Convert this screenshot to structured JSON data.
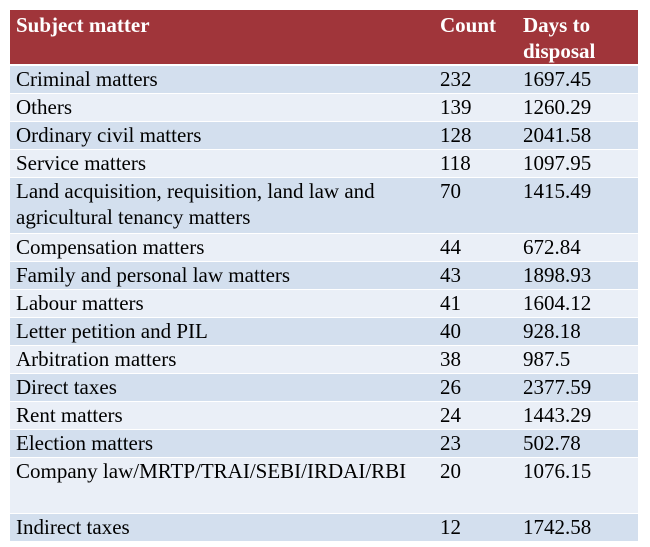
{
  "table": {
    "headers": {
      "subject": "Subject matter",
      "count": "Count",
      "days": "Days to disposal"
    },
    "rows": [
      {
        "subject": "Criminal matters",
        "count": "232",
        "days": "1697.45"
      },
      {
        "subject": "Others",
        "count": "139",
        "days": "1260.29"
      },
      {
        "subject": "Ordinary civil matters",
        "count": "128",
        "days": "2041.58"
      },
      {
        "subject": "Service matters",
        "count": "118",
        "days": "1097.95"
      },
      {
        "subject": "Land acquisition, requisition, land law and agricultural tenancy matters",
        "count": "70",
        "days": "1415.49"
      },
      {
        "subject": "Compensation matters",
        "count": "44",
        "days": "672.84"
      },
      {
        "subject": "Family and personal law matters",
        "count": "43",
        "days": "1898.93"
      },
      {
        "subject": "Labour matters",
        "count": "41",
        "days": "1604.12"
      },
      {
        "subject": "Letter petition and PIL",
        "count": "40",
        "days": "928.18"
      },
      {
        "subject": "Arbitration matters",
        "count": "38",
        "days": "987.5"
      },
      {
        "subject": "Direct taxes",
        "count": "26",
        "days": "2377.59"
      },
      {
        "subject": "Rent matters",
        "count": "24",
        "days": "1443.29"
      },
      {
        "subject": "Election matters",
        "count": "23",
        "days": "502.78"
      },
      {
        "subject": "Company law/MRTP/TRAI/SEBI/IRDAI/RBI",
        "count": "20",
        "days": "1076.15"
      },
      {
        "subject": "Indirect taxes",
        "count": "12",
        "days": "1742.58"
      }
    ]
  },
  "colors": {
    "header_bg": "#a0353a",
    "header_text": "#ffffff",
    "row_band_dark": "#d3dfee",
    "row_band_light": "#eaeff7"
  }
}
